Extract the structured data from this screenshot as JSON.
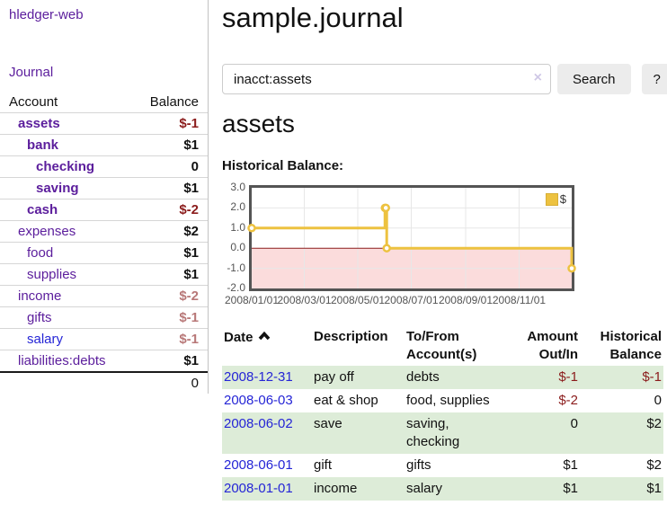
{
  "colors": {
    "link_purple": "#5b1d9c",
    "link_blue": "#2525d6",
    "negative_strong": "#8b1c1c",
    "negative_muted": "#b87878",
    "row_stripe_green": "#ddecd8",
    "series_gold": "#edc240",
    "chart_negative_region": "#fbdcdc",
    "chart_border": "#545454"
  },
  "brand": {
    "label": "hledger-web"
  },
  "sidebar": {
    "journal_link": "Journal",
    "accounts": {
      "col_account": "Account",
      "col_balance": "Balance",
      "rows": [
        {
          "name": "assets",
          "balance": "$-1"
        },
        {
          "name": "bank",
          "balance": "$1"
        },
        {
          "name": "checking",
          "balance": "0"
        },
        {
          "name": "saving",
          "balance": "$1"
        },
        {
          "name": "cash",
          "balance": "$-2"
        },
        {
          "name": "expenses",
          "balance": "$2"
        },
        {
          "name": "food",
          "balance": "$1"
        },
        {
          "name": "supplies",
          "balance": "$1"
        },
        {
          "name": "income",
          "balance": "$-2"
        },
        {
          "name": "gifts",
          "balance": "$-1"
        },
        {
          "name": "salary",
          "balance": "$-1"
        },
        {
          "name": "liabilities:debts",
          "balance": "$1"
        }
      ],
      "total": "0"
    }
  },
  "main": {
    "title": "sample.journal",
    "search": {
      "value": "inacct:assets",
      "clear_icon": "×",
      "search_button": "Search",
      "help_button": "?"
    },
    "account_heading": "assets",
    "chart_title": "Historical Balance:",
    "register": {
      "headers": {
        "date": "Date",
        "description": "Description",
        "account_line1": "To/From",
        "account_line2": "Account(s)",
        "amount_line1": "Amount",
        "amount_line2": "Out/In",
        "balance_line1": "Historical",
        "balance_line2": "Balance"
      },
      "rows": [
        {
          "date": "2008-12-31",
          "description": "pay off",
          "accounts": "debts",
          "amount": "$-1",
          "balance": "$-1"
        },
        {
          "date": "2008-06-03",
          "description": "eat & shop",
          "accounts": "food, supplies",
          "amount": "$-2",
          "balance": "0"
        },
        {
          "date": "2008-06-02",
          "description": "save",
          "accounts": "saving, checking",
          "amount": "0",
          "balance": "$2"
        },
        {
          "date": "2008-06-01",
          "description": "gift",
          "accounts": "gifts",
          "amount": "$1",
          "balance": "$2"
        },
        {
          "date": "2008-01-01",
          "description": "income",
          "accounts": "salary",
          "amount": "$1",
          "balance": "$1"
        }
      ]
    }
  },
  "chart_data": {
    "type": "line",
    "step": true,
    "title": "Historical Balance",
    "series": [
      {
        "name": "$",
        "color": "#edc240",
        "points": [
          [
            "2008-01-01",
            1.0
          ],
          [
            "2008-06-01",
            2.0
          ],
          [
            "2008-06-02",
            2.0
          ],
          [
            "2008-06-03",
            0.0
          ],
          [
            "2008-12-31",
            -1.0
          ]
        ]
      }
    ],
    "x_range": [
      "2008/01/01",
      "2008/12/31"
    ],
    "x_ticks": [
      "2008/01/01",
      "2008/03/01",
      "2008/05/01",
      "2008/07/01",
      "2008/09/01",
      "2008/11/01"
    ],
    "y_ticks": [
      "3.0",
      "2.0",
      "1.0",
      "0.0",
      "-1.0",
      "-2.0"
    ],
    "ylim": [
      -2,
      3
    ],
    "grid": true,
    "legend": {
      "label": "$",
      "position": "top-right"
    },
    "zero_line_color": "#8b1c1c",
    "negative_region_color": "#fbdcdc"
  }
}
